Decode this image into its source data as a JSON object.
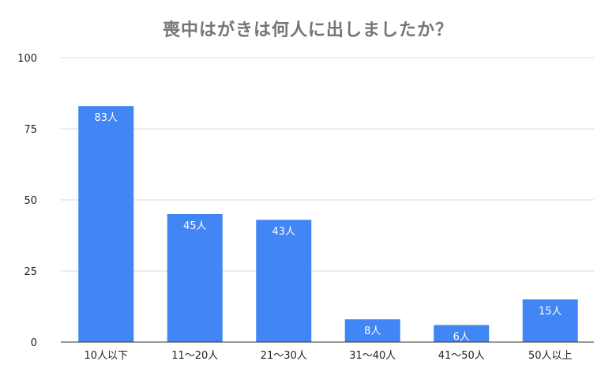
{
  "chart_data": {
    "type": "bar",
    "title": "喪中はがきは何人に出しましたか？",
    "categories": [
      "10人以下",
      "11〜20人",
      "21〜30人",
      "31〜40人",
      "41〜50人",
      "50人以上"
    ],
    "values": [
      83,
      45,
      43,
      8,
      6,
      15
    ],
    "data_labels": [
      "83人",
      "45人",
      "43人",
      "8人",
      "6人",
      "15人"
    ],
    "yticks": [
      "0",
      "25",
      "50",
      "75",
      "100"
    ],
    "ylim": [
      0,
      100
    ],
    "grid": true,
    "legend": "none",
    "xlabel": "",
    "ylabel": ""
  },
  "colors": {
    "bar": "#4285f4",
    "grid": "#d9d9d9",
    "baseline": "#333333",
    "title": "#757575"
  }
}
